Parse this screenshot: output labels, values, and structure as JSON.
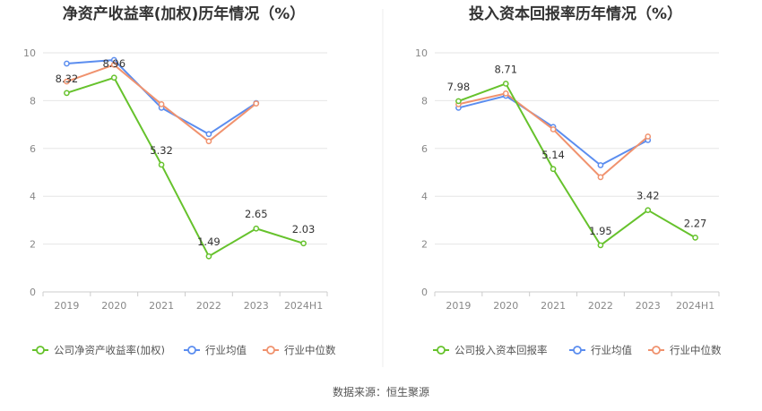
{
  "colors": {
    "company": "#66c22c",
    "industry_avg": "#5b8def",
    "industry_median": "#f0926e",
    "grid": "#e6e6e6",
    "axis": "#cccccc"
  },
  "legend_icon": "circle-line-marker",
  "source_text": "数据来源：恒生聚源",
  "chart_data": [
    {
      "type": "line",
      "title": "净资产收益率(加权)历年情况（%）",
      "categories": [
        "2019",
        "2020",
        "2021",
        "2022",
        "2023",
        "2024H1"
      ],
      "ylim": [
        0,
        10
      ],
      "yticks": [
        "0",
        "2",
        "4",
        "6",
        "8",
        "10"
      ],
      "grid": true,
      "legend_position": "bottom",
      "series": [
        {
          "name": "公司净资产收益率(加权)",
          "values": [
            8.32,
            8.96,
            5.32,
            1.49,
            2.65,
            2.03
          ],
          "labels": [
            "8.32",
            "8.96",
            "5.32",
            "1.49",
            "2.65",
            "2.03"
          ]
        },
        {
          "name": "行业均值",
          "values": [
            9.55,
            9.7,
            7.7,
            6.6,
            7.9,
            null
          ]
        },
        {
          "name": "行业中位数",
          "values": [
            8.8,
            9.5,
            7.85,
            6.3,
            7.88,
            null
          ]
        }
      ]
    },
    {
      "type": "line",
      "title": "投入资本回报率历年情况（%）",
      "categories": [
        "2019",
        "2020",
        "2021",
        "2022",
        "2023",
        "2024H1"
      ],
      "ylim": [
        0,
        10
      ],
      "yticks": [
        "0",
        "2",
        "4",
        "6",
        "8",
        "10"
      ],
      "grid": true,
      "legend_position": "bottom",
      "series": [
        {
          "name": "公司投入资本回报率",
          "values": [
            7.98,
            8.71,
            5.14,
            1.95,
            3.42,
            2.27
          ],
          "labels": [
            "7.98",
            "8.71",
            "5.14",
            "1.95",
            "3.42",
            "2.27"
          ]
        },
        {
          "name": "行业均值",
          "values": [
            7.7,
            8.2,
            6.9,
            5.3,
            6.35,
            null
          ]
        },
        {
          "name": "行业中位数",
          "values": [
            7.85,
            8.3,
            6.8,
            4.8,
            6.5,
            null
          ]
        }
      ]
    }
  ]
}
